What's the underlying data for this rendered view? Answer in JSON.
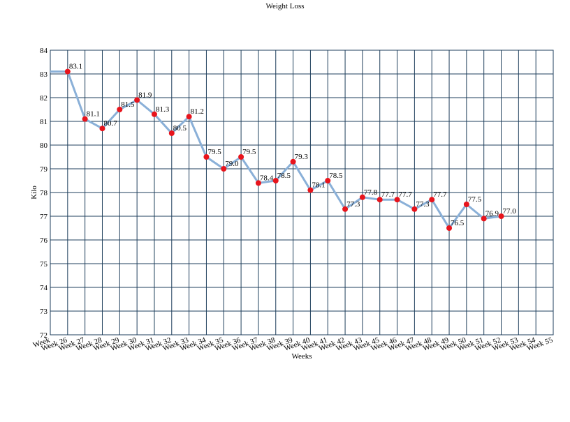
{
  "chart_data": {
    "type": "line",
    "title": "Weight Loss",
    "x_label": "Weeks",
    "y_label": "Kilo",
    "categories": [
      "Week",
      "Week 26",
      "Week 27",
      "Week 28",
      "Week 29",
      "Week 30",
      "Week 31",
      "Week 32",
      "Week 33",
      "Week 34",
      "Week 35",
      "Week 36",
      "Week 37",
      "Week 38",
      "Week 39",
      "Week 40",
      "Week 41",
      "Week 42",
      "Week 43",
      "Week 45",
      "Week 46",
      "Week 47",
      "Week 48",
      "Week 49",
      "Week 50",
      "Week 51",
      "Week 52",
      "Week 53",
      "Week 54",
      "Week 55"
    ],
    "values": [
      83.1,
      83.1,
      81.1,
      80.7,
      81.5,
      81.9,
      81.3,
      80.5,
      81.2,
      79.5,
      79.0,
      79.5,
      78.4,
      78.5,
      79.3,
      78.1,
      78.5,
      77.3,
      77.8,
      77.7,
      77.7,
      77.3,
      77.7,
      76.5,
      77.5,
      76.9,
      77.0,
      null,
      null,
      null
    ],
    "value_labels": [
      null,
      "83.1",
      "81.1",
      "80.7",
      "81.5",
      "81.9",
      "81.3",
      "80.5",
      "81.2",
      "79.5",
      "79.0",
      "79.5",
      "78.4",
      "78.5",
      "79.3",
      "78.1",
      "78.5",
      "77.3",
      "77.8",
      "77.7",
      "77.7",
      "77.3",
      "77.7",
      "76.5",
      "77.5",
      "76.9",
      "77.0",
      null,
      null,
      null
    ],
    "color": "#8ab0d8",
    "marker_color": "#e8141c",
    "ylim": [
      72,
      84
    ],
    "yticks": [
      72,
      73,
      74,
      75,
      76,
      77,
      78,
      79,
      80,
      81,
      82,
      83,
      84
    ],
    "grid": true
  }
}
